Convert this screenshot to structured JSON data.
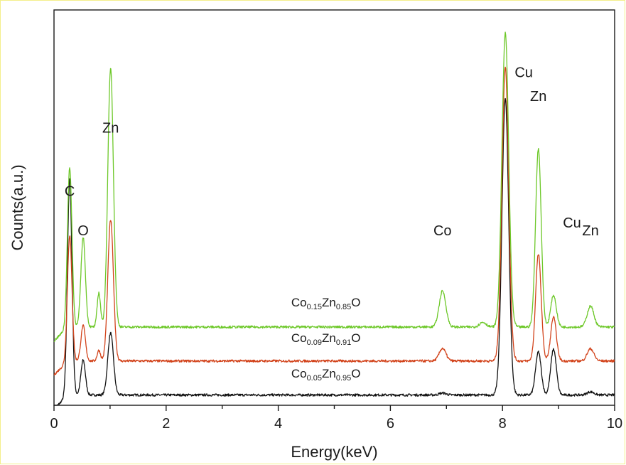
{
  "chart_data": {
    "type": "line",
    "title": "",
    "xlabel": "Energy(keV)",
    "ylabel": "Counts(a.u.)",
    "xlim": [
      0,
      10
    ],
    "xticks": [
      "0",
      "2",
      "4",
      "6",
      "8",
      "10"
    ],
    "y_tick_labels": false,
    "grid": false,
    "legend": "none (series labels printed inline above each trace)",
    "ylim": [
      0,
      100
    ],
    "peak_labels": [
      {
        "text": "C",
        "x": 0.28
      },
      {
        "text": "O",
        "x": 0.52
      },
      {
        "text": "Zn",
        "x": 1.01
      },
      {
        "text": "Co",
        "x": 6.93
      },
      {
        "text": "Cu",
        "x": 8.05
      },
      {
        "text": "Zn",
        "x": 8.64
      },
      {
        "text": "Cu",
        "x": 8.91
      },
      {
        "text": "Zn",
        "x": 9.57
      }
    ],
    "series": [
      {
        "name": "Co0.05Zn0.95O",
        "label_parts": [
          "Co",
          "0.05",
          "Zn",
          "0.95",
          "O"
        ],
        "color": "#111111",
        "baseline": 2.6,
        "peaks": [
          {
            "x": 0.28,
            "h": 54.7,
            "w": 0.04
          },
          {
            "x": 0.52,
            "h": 8.8,
            "w": 0.04
          },
          {
            "x": 1.01,
            "h": 15.7,
            "w": 0.05
          },
          {
            "x": 6.93,
            "h": 0.5,
            "w": 0.06
          },
          {
            "x": 8.05,
            "h": 75.0,
            "w": 0.06
          },
          {
            "x": 8.64,
            "h": 10.9,
            "w": 0.05
          },
          {
            "x": 8.91,
            "h": 11.6,
            "w": 0.05
          },
          {
            "x": 9.57,
            "h": 0.8,
            "w": 0.06
          }
        ]
      },
      {
        "name": "Co0.09Zn0.91O",
        "label_parts": [
          "Co",
          "0.09",
          "Zn",
          "0.91",
          "O"
        ],
        "color": "#d2431b",
        "baseline": 11.2,
        "peaks": [
          {
            "x": 0.28,
            "h": 31.8,
            "w": 0.04
          },
          {
            "x": 0.52,
            "h": 8.9,
            "w": 0.04
          },
          {
            "x": 0.8,
            "h": 2.7,
            "w": 0.03
          },
          {
            "x": 1.01,
            "h": 35.7,
            "w": 0.05
          },
          {
            "x": 6.93,
            "h": 3.2,
            "w": 0.06
          },
          {
            "x": 8.05,
            "h": 74.3,
            "w": 0.06
          },
          {
            "x": 8.64,
            "h": 27.0,
            "w": 0.05
          },
          {
            "x": 8.91,
            "h": 11.1,
            "w": 0.05
          },
          {
            "x": 9.57,
            "h": 3.1,
            "w": 0.06
          }
        ]
      },
      {
        "name": "Co0.15Zn0.85O",
        "label_parts": [
          "Co",
          "0.15",
          "Zn",
          "0.85",
          "O"
        ],
        "color": "#6dc829",
        "baseline": 19.8,
        "peaks": [
          {
            "x": 0.28,
            "h": 40.4,
            "w": 0.04
          },
          {
            "x": 0.52,
            "h": 22.7,
            "w": 0.04
          },
          {
            "x": 0.8,
            "h": 8.7,
            "w": 0.03
          },
          {
            "x": 1.01,
            "h": 65.5,
            "w": 0.05
          },
          {
            "x": 6.93,
            "h": 9.1,
            "w": 0.06
          },
          {
            "x": 7.65,
            "h": 1.2,
            "w": 0.06
          },
          {
            "x": 8.05,
            "h": 74.3,
            "w": 0.06
          },
          {
            "x": 8.64,
            "h": 45.2,
            "w": 0.05
          },
          {
            "x": 8.91,
            "h": 8.0,
            "w": 0.05
          },
          {
            "x": 9.57,
            "h": 5.3,
            "w": 0.06
          }
        ]
      }
    ]
  }
}
